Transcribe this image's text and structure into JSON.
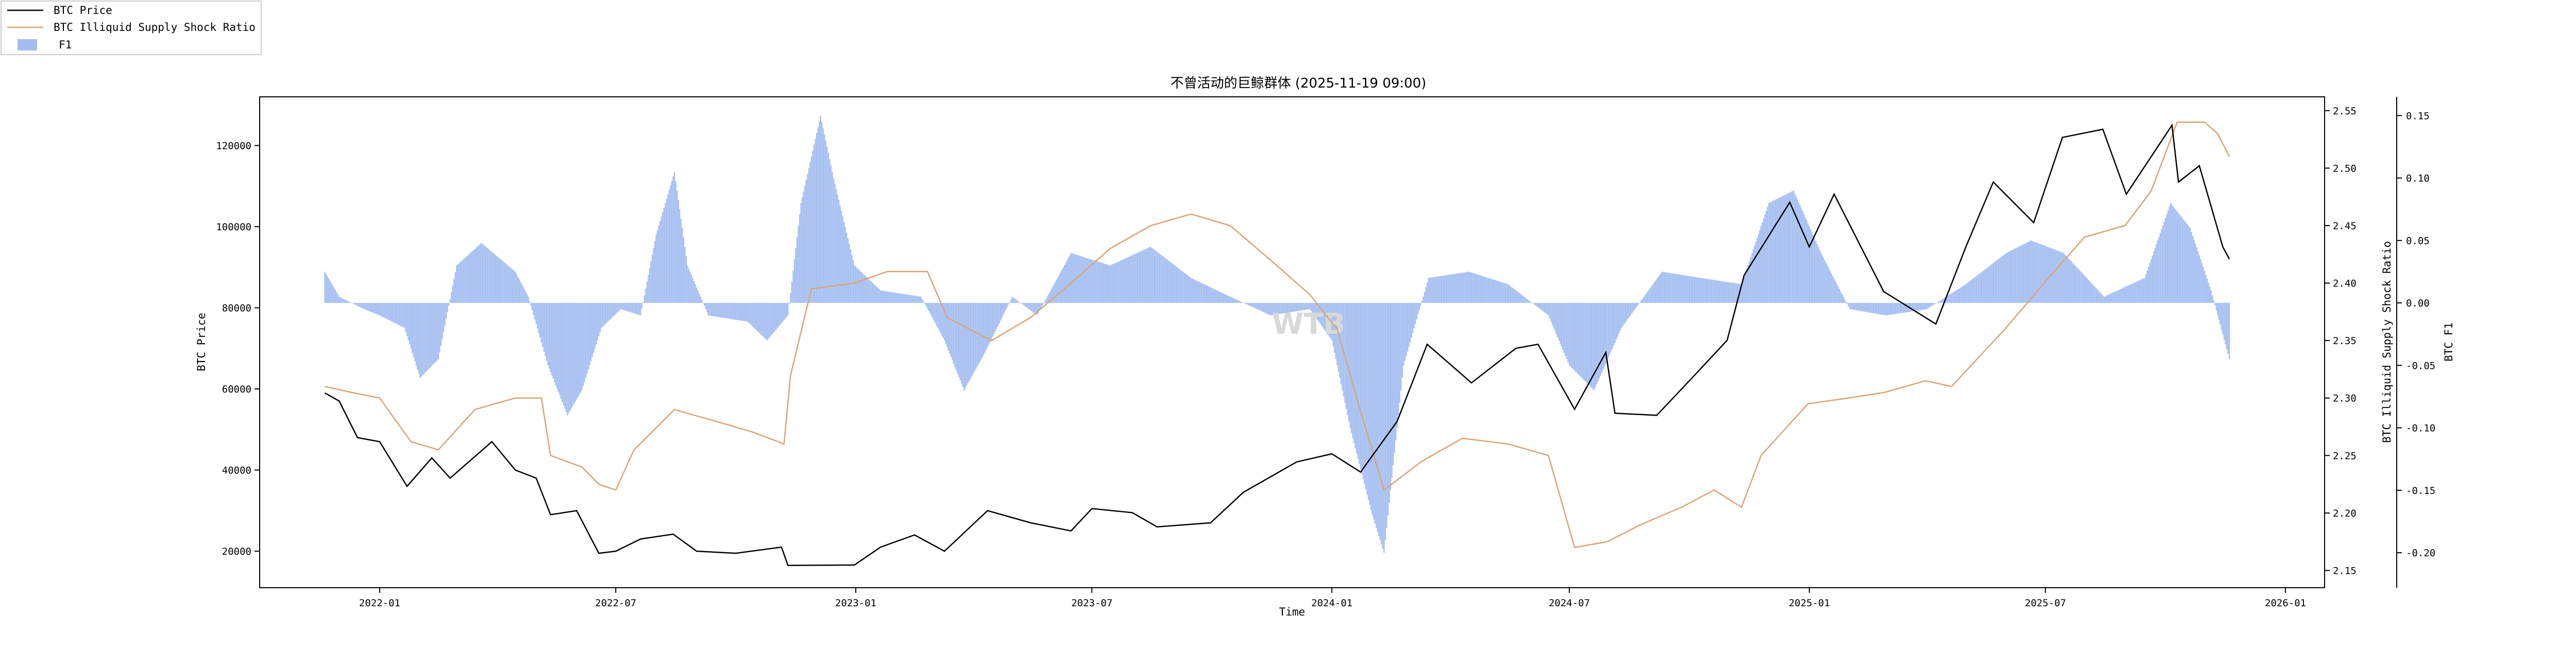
{
  "chart_data": {
    "type": "line",
    "title": "不曾活动的巨鲸群体 (2025-11-19 09:00)",
    "xlabel": "Time",
    "ylabel_left": "BTC Price",
    "ylabel_right1": "BTC Illiquid Supply Shock Ratio",
    "ylabel_right2": "BTC F1",
    "watermark": "WTB",
    "legend_position": "top-left",
    "legend": [
      {
        "label": "BTC Price",
        "kind": "line",
        "color": "#000000"
      },
      {
        "label": "BTC Illiquid Supply Shock Ratio",
        "kind": "line",
        "color": "#d9a476"
      },
      {
        "label": "F1",
        "kind": "patch",
        "color": "#a3bdf0"
      }
    ],
    "x_ticks": [
      "2022-01",
      "2022-07",
      "2023-01",
      "2023-07",
      "2024-01",
      "2024-07",
      "2025-01",
      "2025-07",
      "2026-01"
    ],
    "y_left_ticks": [
      20000,
      40000,
      60000,
      80000,
      100000,
      120000
    ],
    "y_left_lim": [
      11000,
      132000
    ],
    "y_right1_ticks": [
      "2.15",
      "2.20",
      "2.25",
      "2.30",
      "2.35",
      "2.40",
      "2.45",
      "2.50",
      "2.55"
    ],
    "y_right1_lim": [
      2.135,
      2.562
    ],
    "y_right2_ticks": [
      "-0.20",
      "-0.15",
      "-0.10",
      "-0.05",
      "0.00",
      "0.05",
      "0.10",
      "0.15"
    ],
    "y_right2_lim": [
      -0.228,
      0.165
    ],
    "x_range": [
      "2021-10-01",
      "2026-01-31"
    ],
    "series": [
      {
        "name": "BTC Price",
        "axis": "left",
        "color": "#000000",
        "points": [
          [
            "2021-11-20",
            59000
          ],
          [
            "2021-12-01",
            57000
          ],
          [
            "2021-12-15",
            48000
          ],
          [
            "2022-01-01",
            47000
          ],
          [
            "2022-01-22",
            36000
          ],
          [
            "2022-02-10",
            43000
          ],
          [
            "2022-02-24",
            38000
          ],
          [
            "2022-03-28",
            47000
          ],
          [
            "2022-04-15",
            40000
          ],
          [
            "2022-05-01",
            38000
          ],
          [
            "2022-05-12",
            29000
          ],
          [
            "2022-06-01",
            30000
          ],
          [
            "2022-06-18",
            19500
          ],
          [
            "2022-07-01",
            20000
          ],
          [
            "2022-07-20",
            23000
          ],
          [
            "2022-08-14",
            24200
          ],
          [
            "2022-09-01",
            20000
          ],
          [
            "2022-10-01",
            19500
          ],
          [
            "2022-11-05",
            21000
          ],
          [
            "2022-11-10",
            16500
          ],
          [
            "2022-12-31",
            16600
          ],
          [
            "2023-01-20",
            21000
          ],
          [
            "2023-02-15",
            24000
          ],
          [
            "2023-03-10",
            20000
          ],
          [
            "2023-04-12",
            30000
          ],
          [
            "2023-05-15",
            27000
          ],
          [
            "2023-06-15",
            25000
          ],
          [
            "2023-07-01",
            30500
          ],
          [
            "2023-08-01",
            29500
          ],
          [
            "2023-08-20",
            26000
          ],
          [
            "2023-09-30",
            27000
          ],
          [
            "2023-10-25",
            34500
          ],
          [
            "2023-12-05",
            42000
          ],
          [
            "2024-01-01",
            44000
          ],
          [
            "2024-01-23",
            39500
          ],
          [
            "2024-02-20",
            52000
          ],
          [
            "2024-03-14",
            71000
          ],
          [
            "2024-04-17",
            61500
          ],
          [
            "2024-05-21",
            70000
          ],
          [
            "2024-06-07",
            71000
          ],
          [
            "2024-07-05",
            55000
          ],
          [
            "2024-07-29",
            69000
          ],
          [
            "2024-08-05",
            54000
          ],
          [
            "2024-09-06",
            53500
          ],
          [
            "2024-10-01",
            62000
          ],
          [
            "2024-10-30",
            72000
          ],
          [
            "2024-11-12",
            88000
          ],
          [
            "2024-12-17",
            106000
          ],
          [
            "2025-01-01",
            95000
          ],
          [
            "2025-01-20",
            108000
          ],
          [
            "2025-02-27",
            84000
          ],
          [
            "2025-04-08",
            76000
          ],
          [
            "2025-05-01",
            95000
          ],
          [
            "2025-05-22",
            111000
          ],
          [
            "2025-06-22",
            101000
          ],
          [
            "2025-07-14",
            122000
          ],
          [
            "2025-08-14",
            124000
          ],
          [
            "2025-09-01",
            108000
          ],
          [
            "2025-10-06",
            125000
          ],
          [
            "2025-10-11",
            111000
          ],
          [
            "2025-10-27",
            115000
          ],
          [
            "2025-11-14",
            95000
          ],
          [
            "2025-11-19",
            92000
          ]
        ]
      },
      {
        "name": "BTC Illiquid Supply Shock Ratio",
        "axis": "right1",
        "color": "#d9a476",
        "points": [
          [
            "2021-11-20",
            2.31
          ],
          [
            "2021-12-10",
            2.305
          ],
          [
            "2022-01-01",
            2.3
          ],
          [
            "2022-01-25",
            2.262
          ],
          [
            "2022-02-15",
            2.255
          ],
          [
            "2022-03-15",
            2.29
          ],
          [
            "2022-04-15",
            2.3
          ],
          [
            "2022-05-05",
            2.3
          ],
          [
            "2022-05-12",
            2.25
          ],
          [
            "2022-06-05",
            2.24
          ],
          [
            "2022-06-18",
            2.225
          ],
          [
            "2022-07-01",
            2.22
          ],
          [
            "2022-07-15",
            2.255
          ],
          [
            "2022-08-15",
            2.29
          ],
          [
            "2022-09-15",
            2.28
          ],
          [
            "2022-10-15",
            2.27
          ],
          [
            "2022-11-07",
            2.26
          ],
          [
            "2022-11-12",
            2.32
          ],
          [
            "2022-11-28",
            2.395
          ],
          [
            "2022-12-31",
            2.4
          ],
          [
            "2023-01-25",
            2.41
          ],
          [
            "2023-02-25",
            2.41
          ],
          [
            "2023-03-12",
            2.37
          ],
          [
            "2023-04-15",
            2.35
          ],
          [
            "2023-05-15",
            2.37
          ],
          [
            "2023-06-15",
            2.4
          ],
          [
            "2023-07-15",
            2.43
          ],
          [
            "2023-08-15",
            2.45
          ],
          [
            "2023-09-15",
            2.46
          ],
          [
            "2023-10-15",
            2.45
          ],
          [
            "2023-11-15",
            2.42
          ],
          [
            "2023-12-15",
            2.39
          ],
          [
            "2024-01-05",
            2.36
          ],
          [
            "2024-01-20",
            2.3
          ],
          [
            "2024-02-10",
            2.22
          ],
          [
            "2024-03-10",
            2.245
          ],
          [
            "2024-04-10",
            2.265
          ],
          [
            "2024-05-15",
            2.26
          ],
          [
            "2024-06-15",
            2.25
          ],
          [
            "2024-07-05",
            2.17
          ],
          [
            "2024-07-30",
            2.175
          ],
          [
            "2024-08-25",
            2.19
          ],
          [
            "2024-09-25",
            2.205
          ],
          [
            "2024-10-20",
            2.22
          ],
          [
            "2024-11-10",
            2.205
          ],
          [
            "2024-11-25",
            2.25
          ],
          [
            "2024-12-31",
            2.295
          ],
          [
            "2025-01-31",
            2.3
          ],
          [
            "2025-02-28",
            2.305
          ],
          [
            "2025-03-31",
            2.315
          ],
          [
            "2025-04-20",
            2.31
          ],
          [
            "2025-05-31",
            2.36
          ],
          [
            "2025-06-30",
            2.4
          ],
          [
            "2025-07-31",
            2.44
          ],
          [
            "2025-08-31",
            2.45
          ],
          [
            "2025-09-20",
            2.48
          ],
          [
            "2025-10-10",
            2.54
          ],
          [
            "2025-10-31",
            2.54
          ],
          [
            "2025-11-10",
            2.53
          ],
          [
            "2025-11-19",
            2.51
          ]
        ]
      },
      {
        "name": "F1",
        "axis": "right2",
        "type": "bar",
        "color": "#a3bdf0",
        "points": [
          [
            "2021-11-20",
            0.025
          ],
          [
            "2021-12-01",
            0.005
          ],
          [
            "2021-12-20",
            -0.005
          ],
          [
            "2022-01-01",
            -0.01
          ],
          [
            "2022-01-20",
            -0.02
          ],
          [
            "2022-02-01",
            -0.06
          ],
          [
            "2022-02-15",
            -0.045
          ],
          [
            "2022-03-01",
            0.03
          ],
          [
            "2022-03-20",
            0.048
          ],
          [
            "2022-04-15",
            0.025
          ],
          [
            "2022-04-25",
            0.005
          ],
          [
            "2022-05-10",
            -0.05
          ],
          [
            "2022-05-25",
            -0.09
          ],
          [
            "2022-06-05",
            -0.07
          ],
          [
            "2022-06-20",
            -0.02
          ],
          [
            "2022-07-05",
            -0.005
          ],
          [
            "2022-07-20",
            -0.01
          ],
          [
            "2022-08-01",
            0.055
          ],
          [
            "2022-08-15",
            0.105
          ],
          [
            "2022-08-25",
            0.03
          ],
          [
            "2022-09-10",
            -0.01
          ],
          [
            "2022-10-10",
            -0.015
          ],
          [
            "2022-10-25",
            -0.03
          ],
          [
            "2022-11-10",
            -0.01
          ],
          [
            "2022-11-20",
            0.08
          ],
          [
            "2022-12-05",
            0.15
          ],
          [
            "2022-12-15",
            0.1
          ],
          [
            "2022-12-31",
            0.03
          ],
          [
            "2023-01-20",
            0.01
          ],
          [
            "2023-02-20",
            0.005
          ],
          [
            "2023-03-10",
            -0.03
          ],
          [
            "2023-03-25",
            -0.07
          ],
          [
            "2023-04-10",
            -0.04
          ],
          [
            "2023-05-01",
            0.005
          ],
          [
            "2023-05-20",
            -0.01
          ],
          [
            "2023-06-15",
            0.04
          ],
          [
            "2023-07-15",
            0.03
          ],
          [
            "2023-08-15",
            0.045
          ],
          [
            "2023-09-15",
            0.02
          ],
          [
            "2023-10-15",
            0.005
          ],
          [
            "2023-11-15",
            -0.01
          ],
          [
            "2023-12-15",
            -0.005
          ],
          [
            "2024-01-01",
            -0.03
          ],
          [
            "2024-01-15",
            -0.1
          ],
          [
            "2024-02-01",
            -0.17
          ],
          [
            "2024-02-10",
            -0.2
          ],
          [
            "2024-02-25",
            -0.05
          ],
          [
            "2024-03-15",
            0.02
          ],
          [
            "2024-04-15",
            0.025
          ],
          [
            "2024-05-15",
            0.015
          ],
          [
            "2024-06-15",
            -0.01
          ],
          [
            "2024-07-01",
            -0.05
          ],
          [
            "2024-07-20",
            -0.07
          ],
          [
            "2024-08-10",
            -0.02
          ],
          [
            "2024-09-10",
            0.025
          ],
          [
            "2024-10-10",
            0.02
          ],
          [
            "2024-11-10",
            0.015
          ],
          [
            "2024-12-01",
            0.08
          ],
          [
            "2024-12-20",
            0.09
          ],
          [
            "2025-01-10",
            0.04
          ],
          [
            "2025-02-01",
            -0.005
          ],
          [
            "2025-03-01",
            -0.01
          ],
          [
            "2025-04-01",
            -0.005
          ],
          [
            "2025-05-01",
            0.015
          ],
          [
            "2025-06-01",
            0.04
          ],
          [
            "2025-06-20",
            0.05
          ],
          [
            "2025-07-15",
            0.04
          ],
          [
            "2025-08-15",
            0.005
          ],
          [
            "2025-09-15",
            0.02
          ],
          [
            "2025-10-05",
            0.08
          ],
          [
            "2025-10-20",
            0.06
          ],
          [
            "2025-11-05",
            0.01
          ],
          [
            "2025-11-19",
            -0.045
          ]
        ]
      }
    ]
  }
}
